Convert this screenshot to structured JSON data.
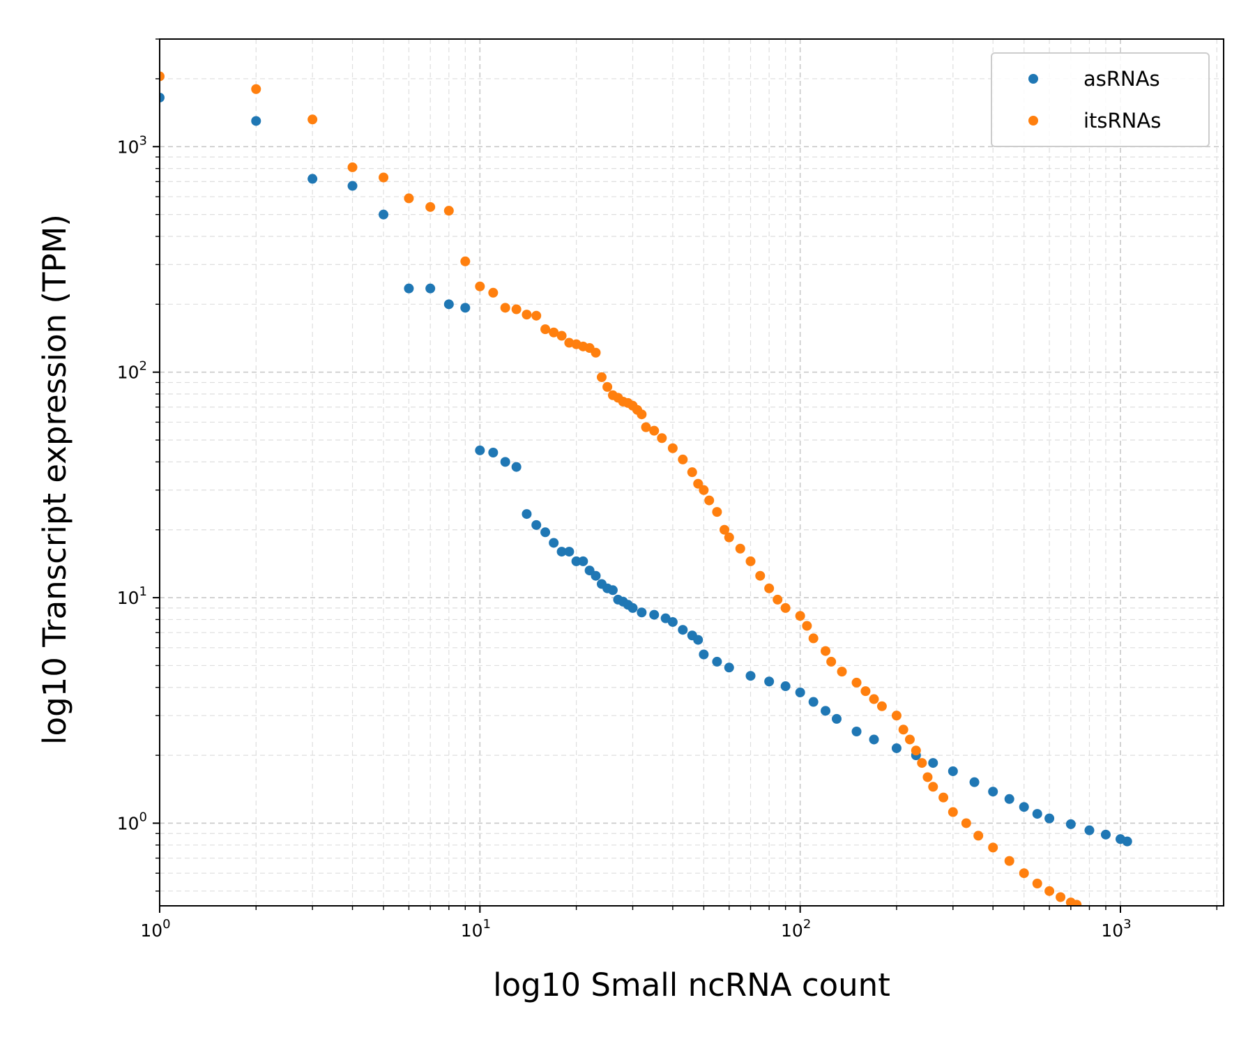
{
  "chart_data": {
    "type": "scatter",
    "xlabel": "log10 Small ncRNA count",
    "ylabel": "log10 Transcript expression (TPM)",
    "x_scale": "log",
    "y_scale": "log",
    "xlim": [
      1,
      2100
    ],
    "ylim": [
      0.43,
      3000
    ],
    "x_ticks": [
      {
        "value": 1,
        "base": "10",
        "exp": "0"
      },
      {
        "value": 10,
        "base": "10",
        "exp": "1"
      },
      {
        "value": 100,
        "base": "10",
        "exp": "2"
      },
      {
        "value": 1000,
        "base": "10",
        "exp": "3"
      }
    ],
    "y_ticks": [
      {
        "value": 1,
        "base": "10",
        "exp": "0"
      },
      {
        "value": 10,
        "base": "10",
        "exp": "1"
      },
      {
        "value": 100,
        "base": "10",
        "exp": "2"
      },
      {
        "value": 1000,
        "base": "10",
        "exp": "3"
      }
    ],
    "grid": true,
    "legend_position": "top-right",
    "series": [
      {
        "name": "asRNAs",
        "color": "#1f77b4",
        "points": [
          [
            1,
            1650
          ],
          [
            2,
            1300
          ],
          [
            3,
            720
          ],
          [
            4,
            670
          ],
          [
            5,
            500
          ],
          [
            6,
            235
          ],
          [
            7,
            235
          ],
          [
            8,
            200
          ],
          [
            9,
            193
          ],
          [
            10,
            45
          ],
          [
            11,
            44
          ],
          [
            12,
            40
          ],
          [
            13,
            38
          ],
          [
            14,
            23.5
          ],
          [
            15,
            21
          ],
          [
            16,
            19.5
          ],
          [
            17,
            17.5
          ],
          [
            18,
            16
          ],
          [
            19,
            16
          ],
          [
            20,
            14.5
          ],
          [
            21,
            14.5
          ],
          [
            22,
            13.2
          ],
          [
            23,
            12.5
          ],
          [
            24,
            11.5
          ],
          [
            25,
            11
          ],
          [
            26,
            10.8
          ],
          [
            27,
            9.8
          ],
          [
            28,
            9.6
          ],
          [
            29,
            9.3
          ],
          [
            30,
            9.0
          ],
          [
            32,
            8.6
          ],
          [
            35,
            8.4
          ],
          [
            38,
            8.1
          ],
          [
            40,
            7.8
          ],
          [
            43,
            7.2
          ],
          [
            46,
            6.8
          ],
          [
            48,
            6.5
          ],
          [
            50,
            5.6
          ],
          [
            55,
            5.2
          ],
          [
            60,
            4.9
          ],
          [
            70,
            4.5
          ],
          [
            80,
            4.25
          ],
          [
            90,
            4.05
          ],
          [
            100,
            3.8
          ],
          [
            110,
            3.45
          ],
          [
            120,
            3.15
          ],
          [
            130,
            2.9
          ],
          [
            150,
            2.55
          ],
          [
            170,
            2.35
          ],
          [
            200,
            2.15
          ],
          [
            230,
            2.0
          ],
          [
            260,
            1.85
          ],
          [
            300,
            1.7
          ],
          [
            350,
            1.52
          ],
          [
            400,
            1.38
          ],
          [
            450,
            1.28
          ],
          [
            500,
            1.18
          ],
          [
            550,
            1.1
          ],
          [
            600,
            1.05
          ],
          [
            700,
            0.99
          ],
          [
            800,
            0.93
          ],
          [
            900,
            0.89
          ],
          [
            1000,
            0.85
          ],
          [
            1050,
            0.83
          ]
        ]
      },
      {
        "name": "itsRNAs",
        "color": "#ff7f0e",
        "points": [
          [
            1,
            2050
          ],
          [
            2,
            1800
          ],
          [
            3,
            1320
          ],
          [
            4,
            810
          ],
          [
            5,
            730
          ],
          [
            6,
            590
          ],
          [
            7,
            540
          ],
          [
            8,
            520
          ],
          [
            9,
            310
          ],
          [
            10,
            240
          ],
          [
            11,
            225
          ],
          [
            12,
            193
          ],
          [
            13,
            190
          ],
          [
            14,
            180
          ],
          [
            15,
            178
          ],
          [
            16,
            155
          ],
          [
            17,
            150
          ],
          [
            18,
            145
          ],
          [
            19,
            135
          ],
          [
            20,
            133
          ],
          [
            21,
            130
          ],
          [
            22,
            128
          ],
          [
            23,
            122
          ],
          [
            24,
            95
          ],
          [
            25,
            86
          ],
          [
            26,
            79
          ],
          [
            27,
            77
          ],
          [
            28,
            74
          ],
          [
            29,
            73
          ],
          [
            30,
            71
          ],
          [
            31,
            68
          ],
          [
            32,
            65
          ],
          [
            33,
            57
          ],
          [
            35,
            55
          ],
          [
            37,
            51
          ],
          [
            40,
            46
          ],
          [
            43,
            41
          ],
          [
            46,
            36
          ],
          [
            48,
            32
          ],
          [
            50,
            30
          ],
          [
            52,
            27
          ],
          [
            55,
            24
          ],
          [
            58,
            20
          ],
          [
            60,
            18.5
          ],
          [
            65,
            16.5
          ],
          [
            70,
            14.5
          ],
          [
            75,
            12.5
          ],
          [
            80,
            11
          ],
          [
            85,
            9.8
          ],
          [
            90,
            9.0
          ],
          [
            100,
            8.3
          ],
          [
            105,
            7.5
          ],
          [
            110,
            6.6
          ],
          [
            120,
            5.8
          ],
          [
            125,
            5.2
          ],
          [
            135,
            4.7
          ],
          [
            150,
            4.2
          ],
          [
            160,
            3.85
          ],
          [
            170,
            3.55
          ],
          [
            180,
            3.3
          ],
          [
            200,
            3.0
          ],
          [
            210,
            2.6
          ],
          [
            220,
            2.35
          ],
          [
            230,
            2.1
          ],
          [
            240,
            1.85
          ],
          [
            250,
            1.6
          ],
          [
            260,
            1.45
          ],
          [
            280,
            1.3
          ],
          [
            300,
            1.12
          ],
          [
            330,
            1.0
          ],
          [
            360,
            0.88
          ],
          [
            400,
            0.78
          ],
          [
            450,
            0.68
          ],
          [
            500,
            0.6
          ],
          [
            550,
            0.54
          ],
          [
            600,
            0.5
          ],
          [
            650,
            0.47
          ],
          [
            700,
            0.445
          ],
          [
            730,
            0.435
          ]
        ]
      }
    ]
  }
}
